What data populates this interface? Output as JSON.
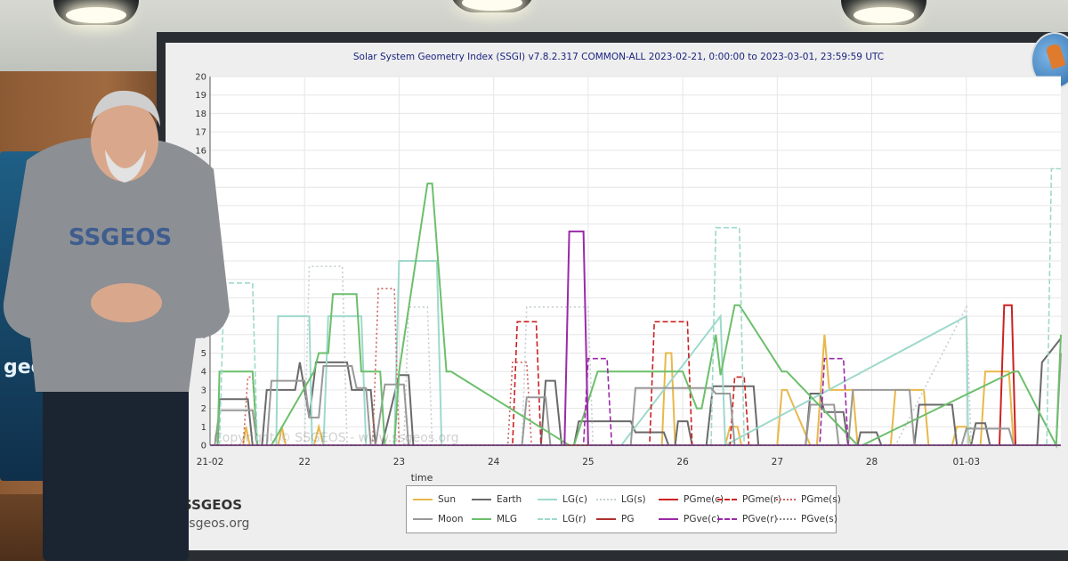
{
  "chart_data": {
    "type": "line",
    "title": "Solar System Geometry Index (SSGI) v7.8.2.317 COMMON-ALL 2023-02-21,  0:00:00 to 2023-03-01, 23:59:59 UTC",
    "xlabel": "time",
    "ylabel": "",
    "xlim": [
      0,
      9
    ],
    "ylim": [
      0,
      20
    ],
    "grid": true,
    "legend_position": "bottom",
    "x_ticks": [
      {
        "v": 0,
        "label": "21-02"
      },
      {
        "v": 1,
        "label": "22"
      },
      {
        "v": 2,
        "label": "23"
      },
      {
        "v": 3,
        "label": "24"
      },
      {
        "v": 4,
        "label": "25"
      },
      {
        "v": 5,
        "label": "26"
      },
      {
        "v": 6,
        "label": "27"
      },
      {
        "v": 7,
        "label": "28"
      },
      {
        "v": 8,
        "label": "01-03"
      }
    ],
    "y_ticks": [
      0,
      1,
      2,
      3,
      4,
      5,
      6,
      7,
      8,
      9,
      10,
      11,
      12,
      13,
      14,
      15,
      16,
      17,
      18,
      19,
      20
    ],
    "watermark": "Copyright © SSGEOS - www.ssgeos.org",
    "series": [
      {
        "name": "Sun",
        "color": "#e8b84a",
        "dash": "solid",
        "x": [
          0,
          0.35,
          0.38,
          0.42,
          0.72,
          0.76,
          0.8,
          1.1,
          1.15,
          1.2,
          4.78,
          4.82,
          4.88,
          4.92,
          5.45,
          5.5,
          5.58,
          5.62,
          6.0,
          6.05,
          6.1,
          6.35,
          6.42,
          6.5,
          6.55,
          6.8,
          6.85,
          7.2,
          7.25,
          7.55,
          7.6,
          7.85,
          7.9,
          8.0,
          8.05,
          8.15,
          8.2,
          8.45,
          8.5,
          9.0
        ],
        "y": [
          0,
          0,
          1,
          0,
          0,
          1,
          0,
          0,
          1,
          0,
          0,
          5,
          5,
          0,
          0,
          1,
          1,
          0,
          0,
          3,
          3,
          0,
          0,
          6,
          3,
          3,
          0,
          0,
          3,
          3,
          0,
          0,
          1,
          1,
          0,
          0,
          4,
          4,
          0,
          0
        ]
      },
      {
        "name": "Earth",
        "color": "#6a6a6a",
        "dash": "solid",
        "x": [
          0,
          0.08,
          0.1,
          0.4,
          0.45,
          0.55,
          0.6,
          0.9,
          0.95,
          1.05,
          1.12,
          1.45,
          1.5,
          1.7,
          1.75,
          1.82,
          2.0,
          2.1,
          2.15,
          2.35,
          2.4,
          3.5,
          3.55,
          3.65,
          3.72,
          3.85,
          3.9,
          4.45,
          4.5,
          4.8,
          4.85,
          4.92,
          4.95,
          5.05,
          5.1,
          5.25,
          5.32,
          5.75,
          5.8,
          6.3,
          6.35,
          6.45,
          6.5,
          6.7,
          6.75,
          6.85,
          6.88,
          7.05,
          7.1,
          7.45,
          7.5,
          7.85,
          7.9,
          8.05,
          8.1,
          8.2,
          8.25,
          8.45,
          8.5,
          8.75,
          8.8,
          9.0
        ],
        "y": [
          0,
          0,
          2.5,
          2.5,
          0,
          0,
          3,
          3,
          4.5,
          1.5,
          4.5,
          4.5,
          3,
          3,
          0,
          0,
          3.8,
          3.8,
          0,
          0,
          0,
          0,
          3.5,
          3.5,
          0,
          0,
          1.3,
          1.3,
          0.7,
          0.7,
          0,
          0,
          1.3,
          1.3,
          0,
          0,
          3.2,
          3.2,
          0,
          0,
          2.8,
          2.8,
          1.8,
          1.8,
          0,
          0,
          0.7,
          0.7,
          0,
          0,
          2.2,
          2.2,
          0,
          0,
          1.2,
          1.2,
          0,
          0,
          0,
          0,
          4.5,
          5.8
        ]
      },
      {
        "name": "LG(c)",
        "color": "#9ed9cc",
        "dash": "solid",
        "x": [
          0,
          0.7,
          0.72,
          1.05,
          1.08,
          1.2,
          1.25,
          1.6,
          1.65,
          1.95,
          2.0,
          2.4,
          2.45,
          4.3,
          4.35,
          5.4,
          5.45,
          8.0,
          8.02,
          9.0
        ],
        "y": [
          0,
          0,
          7,
          7,
          0,
          0,
          7,
          7,
          0,
          0,
          10,
          10,
          0,
          0,
          0,
          7,
          0,
          7,
          0,
          0
        ]
      },
      {
        "name": "LG(s)",
        "color": "#c6cfcf",
        "dash": "dotted",
        "x": [
          0,
          1.0,
          1.05,
          1.4,
          1.45,
          2.05,
          2.1,
          2.3,
          2.35,
          3.3,
          3.35,
          4.0,
          4.05,
          4.3,
          4.35,
          5.3,
          5.35,
          6.0,
          6.05,
          7.2,
          7.25,
          8.0,
          8.05,
          9.0
        ],
        "y": [
          0,
          0,
          9.7,
          9.7,
          0,
          0,
          7.5,
          7.5,
          0,
          0,
          7.5,
          7.5,
          0,
          0,
          0,
          0,
          0,
          0,
          0,
          0,
          0,
          7.5,
          0,
          0
        ]
      },
      {
        "name": "PGme(c)",
        "color": "#cc2222",
        "dash": "solid",
        "x": [
          0,
          8.35,
          8.4,
          8.48,
          8.52,
          9.0
        ],
        "y": [
          0,
          0,
          7.6,
          7.6,
          0,
          0
        ]
      },
      {
        "name": "PGme(r)",
        "color": "#cc2222",
        "dash": "dashed",
        "x": [
          0,
          3.2,
          3.25,
          3.45,
          3.5,
          4.65,
          4.7,
          5.05,
          5.1,
          5.5,
          5.55,
          5.65,
          5.7,
          9.0
        ],
        "y": [
          0,
          0,
          6.7,
          6.7,
          0,
          0,
          6.7,
          6.7,
          0,
          0,
          3.7,
          3.7,
          0,
          0
        ]
      },
      {
        "name": "PGme(s)",
        "color": "#d06060",
        "dash": "dotted",
        "x": [
          0,
          0.35,
          0.4,
          0.45,
          0.5,
          1.72,
          1.78,
          1.95,
          2.0,
          3.15,
          3.2,
          3.35,
          3.4,
          9.0
        ],
        "y": [
          0,
          0,
          3.7,
          3.7,
          0,
          0,
          8.5,
          8.5,
          0,
          0,
          4.5,
          4.5,
          0,
          0
        ]
      },
      {
        "name": "Moon",
        "color": "#999999",
        "dash": "solid",
        "x": [
          0,
          0.05,
          0.1,
          0.45,
          0.5,
          0.6,
          0.65,
          1.0,
          1.05,
          1.15,
          1.2,
          1.5,
          1.55,
          1.65,
          1.7,
          1.75,
          1.85,
          2.05,
          2.1,
          3.3,
          3.35,
          3.55,
          3.6,
          4.45,
          4.5,
          5.3,
          5.35,
          5.5,
          5.55,
          6.3,
          6.35,
          6.6,
          6.65,
          6.75,
          6.8,
          7.4,
          7.45,
          7.95,
          8.0,
          8.45,
          8.5,
          8.95,
          9.0
        ],
        "y": [
          0,
          0,
          1.9,
          1.9,
          0,
          0,
          3.5,
          3.5,
          1.5,
          1.5,
          4.3,
          4.3,
          3.1,
          3.1,
          0,
          0,
          3.3,
          3.3,
          0,
          0,
          2.6,
          2.6,
          0,
          0,
          3.1,
          3.1,
          2.8,
          2.8,
          0,
          0,
          2.2,
          2.2,
          0,
          0,
          3.0,
          3.0,
          0,
          0,
          0.9,
          0.9,
          0,
          0,
          5.0
        ]
      },
      {
        "name": "MLG",
        "color": "#6cbf6c",
        "dash": "solid",
        "x": [
          0,
          0.08,
          0.1,
          0.45,
          0.5,
          0.65,
          1.1,
          1.15,
          1.25,
          1.3,
          1.55,
          1.6,
          1.8,
          1.85,
          1.95,
          2.0,
          2.3,
          2.35,
          2.5,
          2.55,
          3.8,
          3.85,
          4.1,
          4.15,
          4.95,
          5.0,
          5.15,
          5.2,
          5.35,
          5.4,
          5.55,
          5.6,
          6.05,
          6.1,
          6.85,
          6.9,
          8.5,
          8.55,
          8.95,
          9.0
        ],
        "y": [
          0,
          0,
          4,
          4,
          0,
          0,
          4,
          5,
          5,
          8.2,
          8.2,
          4,
          4,
          0,
          0,
          4,
          14.2,
          14.2,
          4,
          4,
          0,
          0,
          4,
          4,
          4,
          4,
          2,
          2,
          6,
          3.8,
          7.6,
          7.6,
          4,
          4,
          0,
          0,
          4,
          4,
          0,
          6
        ]
      },
      {
        "name": "LG(r)",
        "color": "#9ed9cc",
        "dash": "dashed",
        "x": [
          0,
          0.1,
          0.15,
          0.45,
          0.5,
          5.3,
          5.35,
          5.6,
          5.65,
          6.2,
          6.25,
          6.55,
          6.6,
          7.8,
          7.85,
          8.0,
          8.05,
          8.85,
          8.9,
          9.0
        ],
        "y": [
          0,
          0,
          8.8,
          8.8,
          0,
          0,
          11.8,
          11.8,
          0,
          0,
          0,
          0,
          0,
          0,
          0,
          0,
          0,
          0,
          15,
          15
        ]
      },
      {
        "name": "PG",
        "color": "#b03030",
        "dash": "solid",
        "x": [
          0,
          9.0
        ],
        "y": [
          0,
          0
        ]
      },
      {
        "name": "PGve(c)",
        "color": "#9a2aa8",
        "dash": "solid",
        "x": [
          0,
          3.75,
          3.8,
          3.95,
          4.0,
          9.0
        ],
        "y": [
          0,
          0,
          11.6,
          11.6,
          0,
          0
        ]
      },
      {
        "name": "PGve(r)",
        "color": "#9a2aa8",
        "dash": "dashed",
        "x": [
          0,
          3.95,
          4.0,
          4.2,
          4.25,
          6.45,
          6.5,
          6.7,
          6.75,
          9.0
        ],
        "y": [
          0,
          0,
          4.7,
          4.7,
          0,
          0,
          4.7,
          4.7,
          0,
          0
        ]
      },
      {
        "name": "PGve(s)",
        "color": "#888888",
        "dash": "dotted",
        "x": [
          0,
          9.0
        ],
        "y": [
          0,
          0
        ]
      }
    ]
  },
  "brand": {
    "name": "SSGEOS",
    "site": "ssgeos.org",
    "shirt_logo": "SSGEOS",
    "left_panel_text": "geos"
  }
}
